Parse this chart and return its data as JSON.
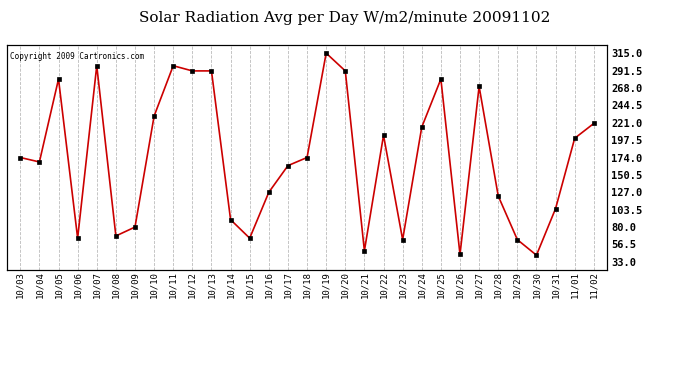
{
  "title": "Solar Radiation Avg per Day W/m2/minute 20091102",
  "copyright": "Copyright 2009 Cartronics.com",
  "dates": [
    "10/03",
    "10/04",
    "10/05",
    "10/06",
    "10/07",
    "10/08",
    "10/09",
    "10/10",
    "10/11",
    "10/12",
    "10/13",
    "10/14",
    "10/15",
    "10/16",
    "10/17",
    "10/18",
    "10/19",
    "10/20",
    "10/21",
    "10/22",
    "10/23",
    "10/24",
    "10/25",
    "10/26",
    "10/27",
    "10/28",
    "10/29",
    "10/30",
    "10/31",
    "11/01",
    "11/02"
  ],
  "values": [
    174,
    168,
    280,
    65,
    298,
    68,
    80,
    230,
    298,
    291,
    291,
    90,
    65,
    127,
    163,
    174,
    315,
    291,
    48,
    204,
    63,
    215,
    280,
    43,
    270,
    122,
    63,
    42,
    105,
    200,
    220
  ],
  "line_color": "#cc0000",
  "marker_color": "#000000",
  "bg_color": "#ffffff",
  "grid_color": "#bbbbbb",
  "title_fontsize": 11,
  "yticks": [
    33.0,
    56.5,
    80.0,
    103.5,
    127.0,
    150.5,
    174.0,
    197.5,
    221.0,
    244.5,
    268.0,
    291.5,
    315.0
  ],
  "ylim": [
    22,
    326
  ]
}
